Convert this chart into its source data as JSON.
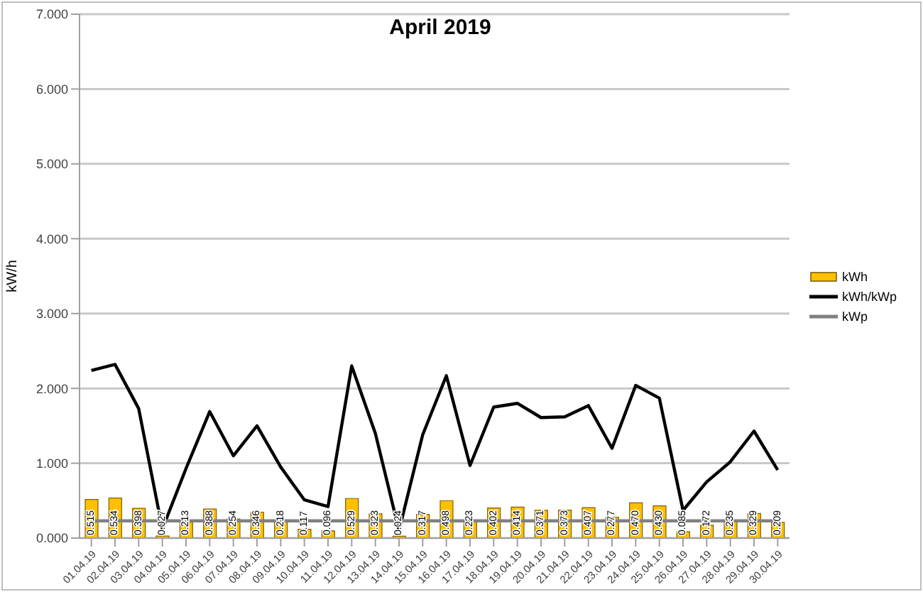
{
  "chart_data": {
    "type": "bar",
    "title": "April 2019",
    "ylabel": "kW/h",
    "categories": [
      "01.04.19",
      "02.04.19",
      "03.04.19",
      "04.04.19",
      "05.04.19",
      "06.04.19",
      "07.04.19",
      "08.04.19",
      "09.04.19",
      "10.04.19",
      "11.04.19",
      "12.04.19",
      "13.04.19",
      "14.04.19",
      "15.04.19",
      "16.04.19",
      "17.04.19",
      "18.04.19",
      "19.04.19",
      "20.04.19",
      "21.04.19",
      "22.04.19",
      "23.04.19",
      "24.04.19",
      "25.04.19",
      "26.04.19",
      "27.04.19",
      "28.04.19",
      "29.04.19",
      "30.04.19"
    ],
    "series": [
      {
        "name": "kWh",
        "color": "#ffc000",
        "values": [
          0.515,
          0.534,
          0.398,
          0.027,
          0.213,
          0.388,
          0.254,
          0.346,
          0.218,
          0.117,
          0.096,
          0.529,
          0.323,
          0.024,
          0.317,
          0.498,
          0.223,
          0.402,
          0.414,
          0.371,
          0.373,
          0.407,
          0.277,
          0.47,
          0.43,
          0.085,
          0.172,
          0.235,
          0.329,
          0.209
        ],
        "value_labels": [
          "0.515",
          "0.534",
          "0.398",
          "0.027",
          "0.213",
          "0.388",
          "0.254",
          "0.346",
          "0.218",
          "0.117",
          "0.096",
          "0.529",
          "0.323",
          "0.024",
          "0.317",
          "0.498",
          "0.223",
          "0.402",
          "0.414",
          "0.371",
          "0.373",
          "0.407",
          "0.277",
          "0.470",
          "0.430",
          "0.085",
          "0.172",
          "0.235",
          "0.329",
          "0.209"
        ]
      },
      {
        "name": "kWh/kWp",
        "type": "line",
        "color": "#000000",
        "values": [
          2.24,
          2.32,
          1.73,
          0.12,
          0.93,
          1.69,
          1.1,
          1.5,
          0.95,
          0.51,
          0.42,
          2.3,
          1.4,
          0.1,
          1.38,
          2.17,
          0.97,
          1.75,
          1.8,
          1.61,
          1.62,
          1.77,
          1.2,
          2.04,
          1.87,
          0.37,
          0.75,
          1.02,
          1.43,
          0.91
        ]
      },
      {
        "name": "kWp",
        "type": "line",
        "color": "#808080",
        "values": [
          0.23,
          0.23,
          0.23,
          0.23,
          0.23,
          0.23,
          0.23,
          0.23,
          0.23,
          0.23,
          0.23,
          0.23,
          0.23,
          0.23,
          0.23,
          0.23,
          0.23,
          0.23,
          0.23,
          0.23,
          0.23,
          0.23,
          0.23,
          0.23,
          0.23,
          0.23,
          0.23,
          0.23,
          0.23,
          0.23
        ]
      }
    ],
    "ylim": [
      0,
      7
    ],
    "yticks": [
      {
        "value": 0,
        "label": "0.000"
      },
      {
        "value": 1,
        "label": "1.000"
      },
      {
        "value": 2,
        "label": "2.000"
      },
      {
        "value": 3,
        "label": "3.000"
      },
      {
        "value": 4,
        "label": "4.000"
      },
      {
        "value": 5,
        "label": "5.000"
      },
      {
        "value": 6,
        "label": "6.000"
      },
      {
        "value": 7,
        "label": "7.000"
      }
    ],
    "grid": "y",
    "legend": "right",
    "marker": "none"
  }
}
